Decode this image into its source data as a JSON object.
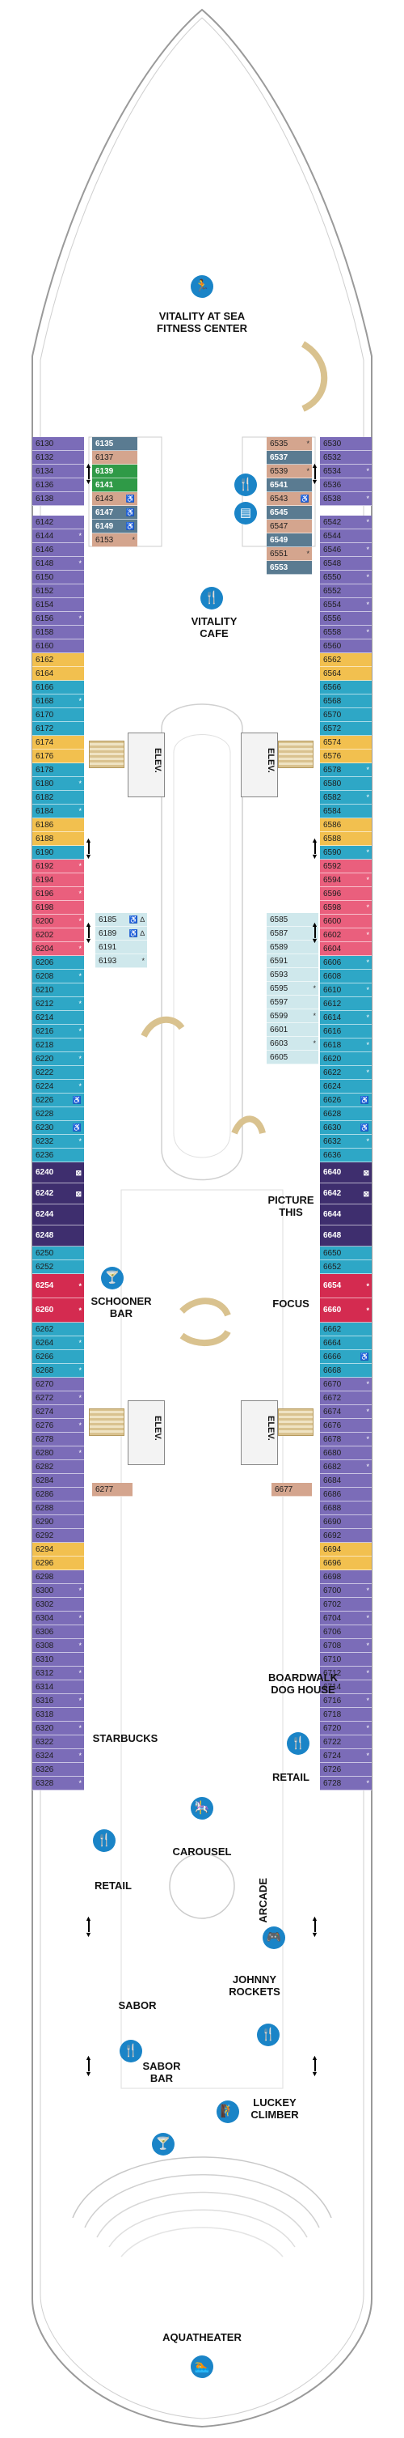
{
  "colors": {
    "purple": "#7b6cb8",
    "teal": "#2ea7c6",
    "yellow": "#f2c04f",
    "pink": "#ea5f7d",
    "slate": "#5a7b91",
    "green": "#2f9a47",
    "tan": "#d4a58e",
    "light_teal": "#cfe8ec",
    "dark_suite": "#3e2e6e",
    "red_suite": "#d42b50",
    "icon_blue": "#1a84c7"
  },
  "labels": {
    "fitness": "VITALITY AT SEA\nFITNESS CENTER",
    "vitality_cafe": "VITALITY\nCAFE",
    "elev_1": "ELEV.",
    "elev_2": "ELEV.",
    "elev_3": "ELEV.",
    "elev_4": "ELEV.",
    "picture_this": "PICTURE\nTHIS",
    "schooner_bar": "SCHOONER\nBAR",
    "focus": "FOCUS",
    "boardwalk_dog_house": "BOARDWALK\nDOG HOUSE",
    "starbucks": "STARBUCKS",
    "retail_left": "RETAIL",
    "retail_right": "RETAIL",
    "carousel": "CAROUSEL",
    "arcade": "ARCADE",
    "johnny_rockets": "JOHNNY\nROCKETS",
    "sabor": "SABOR",
    "sabor_bar": "SABOR\nBAR",
    "luckey_climber": "LUCKEY\nCLIMBER",
    "aquatheater": "AQUATHEATER"
  },
  "icons": {
    "fitness": "fitness-runner-icon",
    "cafe": "cafe-dining-icon",
    "drink": "cocktail-icon",
    "dining": "dining-icon",
    "carousel": "carousel-horse-icon",
    "arcade": "arcade-game-icon",
    "kids": "kids-climber-icon",
    "pool": "aquatheater-swimmer-icon",
    "wheelchair": "accessible-icon"
  },
  "left_cabins": [
    {
      "n": "6130",
      "c": "purple"
    },
    {
      "n": "6132",
      "c": "purple"
    },
    {
      "n": "6134",
      "c": "purple"
    },
    {
      "n": "6136",
      "c": "purple"
    },
    {
      "n": "6138",
      "c": "purple"
    },
    {
      "n": "6142",
      "c": "purple"
    },
    {
      "n": "6144",
      "c": "purple",
      "m": "*"
    },
    {
      "n": "6146",
      "c": "purple"
    },
    {
      "n": "6148",
      "c": "purple",
      "m": "*"
    },
    {
      "n": "6150",
      "c": "purple"
    },
    {
      "n": "6152",
      "c": "purple"
    },
    {
      "n": "6154",
      "c": "purple"
    },
    {
      "n": "6156",
      "c": "purple",
      "m": "*"
    },
    {
      "n": "6158",
      "c": "purple"
    },
    {
      "n": "6160",
      "c": "purple"
    },
    {
      "n": "6162",
      "c": "yellow"
    },
    {
      "n": "6164",
      "c": "yellow"
    },
    {
      "n": "6166",
      "c": "teal"
    },
    {
      "n": "6168",
      "c": "teal",
      "m": "*"
    },
    {
      "n": "6170",
      "c": "teal"
    },
    {
      "n": "6172",
      "c": "teal"
    },
    {
      "n": "6174",
      "c": "yellow"
    },
    {
      "n": "6176",
      "c": "yellow"
    },
    {
      "n": "6178",
      "c": "teal"
    },
    {
      "n": "6180",
      "c": "teal",
      "m": "*"
    },
    {
      "n": "6182",
      "c": "teal"
    },
    {
      "n": "6184",
      "c": "teal",
      "m": "*"
    },
    {
      "n": "6186",
      "c": "yellow"
    },
    {
      "n": "6188",
      "c": "yellow"
    },
    {
      "n": "6190",
      "c": "teal"
    },
    {
      "n": "6192",
      "c": "pink",
      "m": "*"
    },
    {
      "n": "6194",
      "c": "pink"
    },
    {
      "n": "6196",
      "c": "pink",
      "m": "*"
    },
    {
      "n": "6198",
      "c": "pink"
    },
    {
      "n": "6200",
      "c": "pink",
      "m": "*"
    },
    {
      "n": "6202",
      "c": "pink"
    },
    {
      "n": "6204",
      "c": "pink",
      "m": "*"
    },
    {
      "n": "6206",
      "c": "teal"
    },
    {
      "n": "6208",
      "c": "teal",
      "m": "*"
    },
    {
      "n": "6210",
      "c": "teal"
    },
    {
      "n": "6212",
      "c": "teal",
      "m": "*"
    },
    {
      "n": "6214",
      "c": "teal"
    },
    {
      "n": "6216",
      "c": "teal",
      "m": "*"
    },
    {
      "n": "6218",
      "c": "teal"
    },
    {
      "n": "6220",
      "c": "teal",
      "m": "*"
    },
    {
      "n": "6222",
      "c": "teal"
    },
    {
      "n": "6224",
      "c": "teal",
      "m": "*"
    },
    {
      "n": "6226",
      "c": "teal",
      "m": "♿"
    },
    {
      "n": "6228",
      "c": "teal"
    },
    {
      "n": "6230",
      "c": "teal",
      "m": "♿"
    },
    {
      "n": "6232",
      "c": "teal",
      "m": "*"
    },
    {
      "n": "6236",
      "c": "teal"
    },
    {
      "n": "6240",
      "c": "dark_suite",
      "m": "⊠",
      "h": 26
    },
    {
      "n": "6242",
      "c": "dark_suite",
      "m": "⊠",
      "h": 26
    },
    {
      "n": "6244",
      "c": "dark_suite",
      "h": 26
    },
    {
      "n": "6248",
      "c": "dark_suite",
      "h": 26
    },
    {
      "n": "6250",
      "c": "teal"
    },
    {
      "n": "6252",
      "c": "teal"
    },
    {
      "n": "6254",
      "c": "red_suite",
      "m": "*",
      "h": 30
    },
    {
      "n": "6260",
      "c": "red_suite",
      "m": "*",
      "h": 30
    },
    {
      "n": "6262",
      "c": "teal"
    },
    {
      "n": "6264",
      "c": "teal",
      "m": "*"
    },
    {
      "n": "6266",
      "c": "teal"
    },
    {
      "n": "6268",
      "c": "teal",
      "m": "*"
    },
    {
      "n": "6270",
      "c": "purple"
    },
    {
      "n": "6272",
      "c": "purple",
      "m": "*"
    },
    {
      "n": "6274",
      "c": "purple"
    },
    {
      "n": "6276",
      "c": "purple",
      "m": "*"
    },
    {
      "n": "6278",
      "c": "purple"
    },
    {
      "n": "6280",
      "c": "purple",
      "m": "*"
    },
    {
      "n": "6282",
      "c": "purple"
    },
    {
      "n": "6284",
      "c": "purple"
    },
    {
      "n": "6286",
      "c": "purple"
    },
    {
      "n": "6288",
      "c": "purple"
    },
    {
      "n": "6290",
      "c": "purple"
    },
    {
      "n": "6292",
      "c": "purple"
    },
    {
      "n": "6294",
      "c": "yellow"
    },
    {
      "n": "6296",
      "c": "yellow"
    },
    {
      "n": "6298",
      "c": "purple"
    },
    {
      "n": "6300",
      "c": "purple",
      "m": "*"
    },
    {
      "n": "6302",
      "c": "purple"
    },
    {
      "n": "6304",
      "c": "purple",
      "m": "*"
    },
    {
      "n": "6306",
      "c": "purple"
    },
    {
      "n": "6308",
      "c": "purple",
      "m": "*"
    },
    {
      "n": "6310",
      "c": "purple"
    },
    {
      "n": "6312",
      "c": "purple",
      "m": "*"
    },
    {
      "n": "6314",
      "c": "purple"
    },
    {
      "n": "6316",
      "c": "purple",
      "m": "*"
    },
    {
      "n": "6318",
      "c": "purple"
    },
    {
      "n": "6320",
      "c": "purple",
      "m": "*"
    },
    {
      "n": "6322",
      "c": "purple"
    },
    {
      "n": "6324",
      "c": "purple",
      "m": "*"
    },
    {
      "n": "6326",
      "c": "purple"
    },
    {
      "n": "6328",
      "c": "purple",
      "m": "*"
    }
  ],
  "right_cabins": [
    {
      "n": "6530",
      "c": "purple"
    },
    {
      "n": "6532",
      "c": "purple"
    },
    {
      "n": "6534",
      "c": "purple",
      "m": "*"
    },
    {
      "n": "6536",
      "c": "purple"
    },
    {
      "n": "6538",
      "c": "purple",
      "m": "*"
    },
    {
      "n": "6542",
      "c": "purple",
      "m": "*"
    },
    {
      "n": "6544",
      "c": "purple"
    },
    {
      "n": "6546",
      "c": "purple",
      "m": "*"
    },
    {
      "n": "6548",
      "c": "purple"
    },
    {
      "n": "6550",
      "c": "purple",
      "m": "*"
    },
    {
      "n": "6552",
      "c": "purple"
    },
    {
      "n": "6554",
      "c": "purple",
      "m": "*"
    },
    {
      "n": "6556",
      "c": "purple"
    },
    {
      "n": "6558",
      "c": "purple",
      "m": "*"
    },
    {
      "n": "6560",
      "c": "purple"
    },
    {
      "n": "6562",
      "c": "yellow"
    },
    {
      "n": "6564",
      "c": "yellow"
    },
    {
      "n": "6566",
      "c": "teal"
    },
    {
      "n": "6568",
      "c": "teal"
    },
    {
      "n": "6570",
      "c": "teal"
    },
    {
      "n": "6572",
      "c": "teal"
    },
    {
      "n": "6574",
      "c": "yellow"
    },
    {
      "n": "6576",
      "c": "yellow"
    },
    {
      "n": "6578",
      "c": "teal",
      "m": "*"
    },
    {
      "n": "6580",
      "c": "teal"
    },
    {
      "n": "6582",
      "c": "teal",
      "m": "*"
    },
    {
      "n": "6584",
      "c": "teal"
    },
    {
      "n": "6586",
      "c": "yellow"
    },
    {
      "n": "6588",
      "c": "yellow"
    },
    {
      "n": "6590",
      "c": "teal",
      "m": "*"
    },
    {
      "n": "6592",
      "c": "pink"
    },
    {
      "n": "6594",
      "c": "pink",
      "m": "*"
    },
    {
      "n": "6596",
      "c": "pink"
    },
    {
      "n": "6598",
      "c": "pink",
      "m": "*"
    },
    {
      "n": "6600",
      "c": "pink"
    },
    {
      "n": "6602",
      "c": "pink",
      "m": "*"
    },
    {
      "n": "6604",
      "c": "pink"
    },
    {
      "n": "6606",
      "c": "teal",
      "m": "*"
    },
    {
      "n": "6608",
      "c": "teal"
    },
    {
      "n": "6610",
      "c": "teal",
      "m": "*"
    },
    {
      "n": "6612",
      "c": "teal"
    },
    {
      "n": "6614",
      "c": "teal",
      "m": "*"
    },
    {
      "n": "6616",
      "c": "teal"
    },
    {
      "n": "6618",
      "c": "teal",
      "m": "*"
    },
    {
      "n": "6620",
      "c": "teal"
    },
    {
      "n": "6622",
      "c": "teal",
      "m": "*"
    },
    {
      "n": "6624",
      "c": "teal"
    },
    {
      "n": "6626",
      "c": "teal",
      "m": "♿"
    },
    {
      "n": "6628",
      "c": "teal"
    },
    {
      "n": "6630",
      "c": "teal",
      "m": "♿"
    },
    {
      "n": "6632",
      "c": "teal",
      "m": "*"
    },
    {
      "n": "6636",
      "c": "teal"
    },
    {
      "n": "6640",
      "c": "dark_suite",
      "m": "⊠",
      "h": 26
    },
    {
      "n": "6642",
      "c": "dark_suite",
      "m": "⊠",
      "h": 26
    },
    {
      "n": "6644",
      "c": "dark_suite",
      "h": 26
    },
    {
      "n": "6648",
      "c": "dark_suite",
      "h": 26
    },
    {
      "n": "6650",
      "c": "teal"
    },
    {
      "n": "6652",
      "c": "teal"
    },
    {
      "n": "6654",
      "c": "red_suite",
      "m": "*",
      "h": 30
    },
    {
      "n": "6660",
      "c": "red_suite",
      "m": "*",
      "h": 30
    },
    {
      "n": "6662",
      "c": "teal"
    },
    {
      "n": "6664",
      "c": "teal"
    },
    {
      "n": "6666",
      "c": "teal",
      "m": "♿"
    },
    {
      "n": "6668",
      "c": "teal"
    },
    {
      "n": "6670",
      "c": "purple",
      "m": "*"
    },
    {
      "n": "6672",
      "c": "purple"
    },
    {
      "n": "6674",
      "c": "purple",
      "m": "*"
    },
    {
      "n": "6676",
      "c": "purple"
    },
    {
      "n": "6678",
      "c": "purple",
      "m": "*"
    },
    {
      "n": "6680",
      "c": "purple"
    },
    {
      "n": "6682",
      "c": "purple",
      "m": "*"
    },
    {
      "n": "6684",
      "c": "purple"
    },
    {
      "n": "6686",
      "c": "purple"
    },
    {
      "n": "6688",
      "c": "purple"
    },
    {
      "n": "6690",
      "c": "purple"
    },
    {
      "n": "6692",
      "c": "purple"
    },
    {
      "n": "6694",
      "c": "yellow"
    },
    {
      "n": "6696",
      "c": "yellow"
    },
    {
      "n": "6698",
      "c": "purple"
    },
    {
      "n": "6700",
      "c": "purple",
      "m": "*"
    },
    {
      "n": "6702",
      "c": "purple"
    },
    {
      "n": "6704",
      "c": "purple",
      "m": "*"
    },
    {
      "n": "6706",
      "c": "purple"
    },
    {
      "n": "6708",
      "c": "purple",
      "m": "*"
    },
    {
      "n": "6710",
      "c": "purple"
    },
    {
      "n": "6712",
      "c": "purple",
      "m": "*"
    },
    {
      "n": "6714",
      "c": "purple"
    },
    {
      "n": "6716",
      "c": "purple",
      "m": "*"
    },
    {
      "n": "6718",
      "c": "purple"
    },
    {
      "n": "6720",
      "c": "purple",
      "m": "*"
    },
    {
      "n": "6722",
      "c": "purple"
    },
    {
      "n": "6724",
      "c": "purple",
      "m": "*"
    },
    {
      "n": "6726",
      "c": "purple"
    },
    {
      "n": "6728",
      "c": "purple",
      "m": "*"
    }
  ],
  "inner_left_cabins": [
    {
      "n": "6135",
      "c": "slate"
    },
    {
      "n": "6137",
      "c": "tan"
    },
    {
      "n": "6139",
      "c": "green"
    },
    {
      "n": "6141",
      "c": "green"
    },
    {
      "n": "6143",
      "c": "tan",
      "m": "♿"
    },
    {
      "n": "6147",
      "c": "slate",
      "m": "♿"
    },
    {
      "n": "6149",
      "c": "slate",
      "m": "♿"
    },
    {
      "n": "6153",
      "c": "tan",
      "m": "*"
    }
  ],
  "inner_right_cabins": [
    {
      "n": "6535",
      "c": "tan",
      "m": "*"
    },
    {
      "n": "6537",
      "c": "slate"
    },
    {
      "n": "6539",
      "c": "tan",
      "m": "*"
    },
    {
      "n": "6541",
      "c": "slate"
    },
    {
      "n": "6543",
      "c": "tan",
      "m": "♿"
    },
    {
      "n": "6545",
      "c": "slate"
    },
    {
      "n": "6547",
      "c": "tan"
    },
    {
      "n": "6549",
      "c": "slate"
    },
    {
      "n": "6551",
      "c": "tan",
      "m": "*"
    },
    {
      "n": "6553",
      "c": "slate"
    }
  ],
  "mid_left_cabins": [
    {
      "n": "6185",
      "c": "light_teal",
      "m": "♿ ∆"
    },
    {
      "n": "6189",
      "c": "light_teal",
      "m": "♿ ∆"
    },
    {
      "n": "6191",
      "c": "light_teal"
    },
    {
      "n": "6193",
      "c": "light_teal",
      "m": "*"
    }
  ],
  "mid_right_cabins": [
    {
      "n": "6585",
      "c": "light_teal"
    },
    {
      "n": "6587",
      "c": "light_teal"
    },
    {
      "n": "6589",
      "c": "light_teal"
    },
    {
      "n": "6591",
      "c": "light_teal"
    },
    {
      "n": "6593",
      "c": "light_teal"
    },
    {
      "n": "6595",
      "c": "light_teal",
      "m": "*"
    },
    {
      "n": "6597",
      "c": "light_teal"
    },
    {
      "n": "6599",
      "c": "light_teal",
      "m": "*"
    },
    {
      "n": "6601",
      "c": "light_teal"
    },
    {
      "n": "6603",
      "c": "light_teal",
      "m": "*"
    },
    {
      "n": "6605",
      "c": "light_teal"
    }
  ],
  "single_cabins": {
    "left": "6277",
    "right": "6677"
  }
}
